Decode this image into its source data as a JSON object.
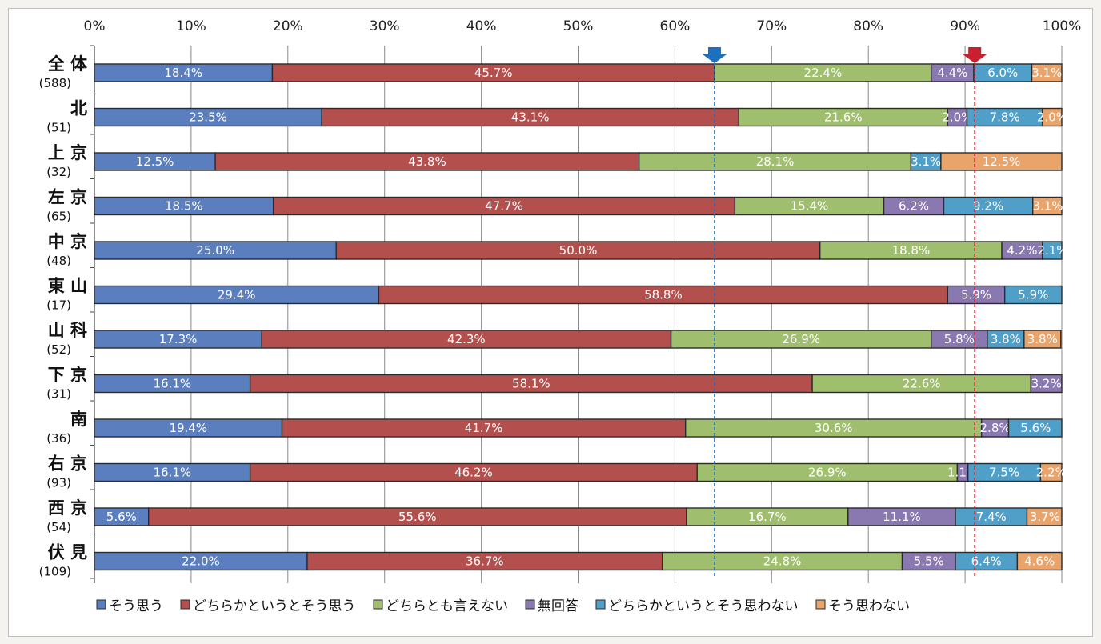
{
  "chart_data": {
    "type": "bar",
    "orientation": "horizontal",
    "stacked": true,
    "xlim": [
      0,
      100
    ],
    "x_ticks": [
      "0%",
      "10%",
      "20%",
      "30%",
      "40%",
      "50%",
      "60%",
      "70%",
      "80%",
      "90%",
      "100%"
    ],
    "grid": true,
    "legend_position": "bottom",
    "categories": [
      {
        "name": "全 体",
        "count": "(588)"
      },
      {
        "name": "北",
        "count": "(51)"
      },
      {
        "name": "上 京",
        "count": "(32)"
      },
      {
        "name": "左 京",
        "count": "(65)"
      },
      {
        "name": "中 京",
        "count": "(48)"
      },
      {
        "name": "東 山",
        "count": "(17)"
      },
      {
        "name": "山 科",
        "count": "(52)"
      },
      {
        "name": "下 京",
        "count": "(31)"
      },
      {
        "name": "南",
        "count": "(36)"
      },
      {
        "name": "右 京",
        "count": "(93)"
      },
      {
        "name": "西 京",
        "count": "(54)"
      },
      {
        "name": "伏 見",
        "count": "(109)"
      }
    ],
    "series": [
      {
        "name": "そう思う",
        "color": "#5b7fbe",
        "values": [
          18.4,
          23.5,
          12.5,
          18.5,
          25.0,
          29.4,
          17.3,
          16.1,
          19.4,
          16.1,
          5.6,
          22.0
        ]
      },
      {
        "name": "どちらかというとそう思う",
        "color": "#b3504e",
        "values": [
          45.7,
          43.1,
          43.8,
          47.7,
          50.0,
          58.8,
          42.3,
          58.1,
          41.7,
          46.2,
          55.6,
          36.7
        ]
      },
      {
        "name": "どちらとも言えない",
        "color": "#9fbe6e",
        "values": [
          22.4,
          21.6,
          28.1,
          15.4,
          18.8,
          0,
          26.9,
          22.6,
          30.6,
          26.9,
          16.7,
          24.8
        ]
      },
      {
        "name": "無回答",
        "color": "#8a78b0",
        "values": [
          4.4,
          2.0,
          0,
          6.2,
          4.2,
          5.9,
          5.8,
          3.2,
          2.8,
          1.1,
          11.1,
          5.5
        ]
      },
      {
        "name": "どちらかというとそう思わない",
        "color": "#4f9fc9",
        "values": [
          6.0,
          7.8,
          3.1,
          9.2,
          2.1,
          5.9,
          3.8,
          0,
          5.6,
          7.5,
          7.4,
          6.4
        ]
      },
      {
        "name": "そう思わない",
        "color": "#e9a46c",
        "values": [
          3.1,
          2.0,
          12.5,
          3.1,
          0,
          0,
          3.8,
          0,
          0,
          2.2,
          3.7,
          4.6
        ]
      }
    ],
    "value_labels": [
      [
        "18.4%",
        "45.7%",
        "22.4%",
        "4.4%",
        "6.0%",
        "3.1%"
      ],
      [
        "23.5%",
        "43.1%",
        "21.6%",
        "2.0%",
        "7.8%",
        "2.0%"
      ],
      [
        "12.5%",
        "43.8%",
        "28.1%",
        "",
        "3.1%",
        "12.5%"
      ],
      [
        "18.5%",
        "47.7%",
        "15.4%",
        "6.2%",
        "9.2%",
        "3.1%"
      ],
      [
        "25.0%",
        "50.0%",
        "18.8%",
        "4.2%",
        "2.1%",
        ""
      ],
      [
        "29.4%",
        "58.8%",
        "",
        "5.9%",
        "5.9%",
        ""
      ],
      [
        "17.3%",
        "42.3%",
        "26.9%",
        "5.8%",
        "3.8%",
        "3.8%"
      ],
      [
        "16.1%",
        "58.1%",
        "22.6%",
        "3.2%",
        "",
        ""
      ],
      [
        "19.4%",
        "41.7%",
        "30.6%",
        "2.8%",
        "5.6%",
        ""
      ],
      [
        "16.1%",
        "46.2%",
        "26.9%",
        "1.1%",
        "7.5%",
        "2.2%"
      ],
      [
        "5.6%",
        "55.6%",
        "16.7%",
        "11.1%",
        "7.4%",
        "3.7%"
      ],
      [
        "22.0%",
        "36.7%",
        "24.8%",
        "5.5%",
        "6.4%",
        "4.6%"
      ]
    ],
    "reference_lines": [
      {
        "value": 64.1,
        "color": "#1f6fbf",
        "marker": "down-arrow"
      },
      {
        "value": 91.0,
        "color": "#c8202e",
        "marker": "down-arrow"
      }
    ]
  }
}
